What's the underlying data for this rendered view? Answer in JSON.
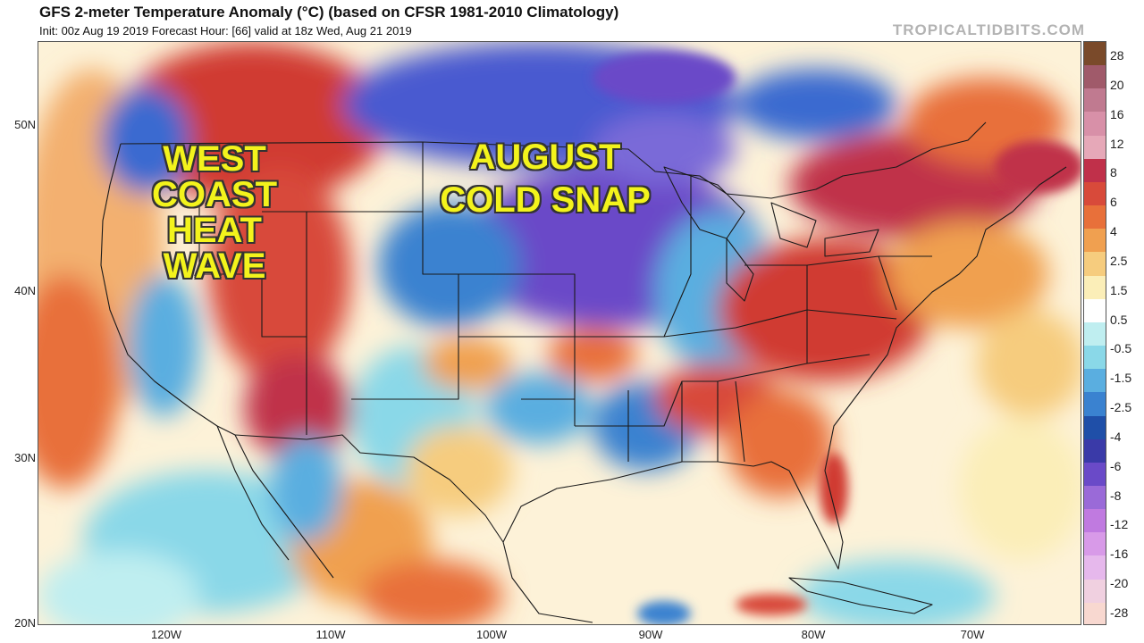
{
  "header": {
    "title": "GFS 2-meter Temperature Anomaly (°C) (based on CFSR 1981-2010 Climatology)",
    "subtitle": "Init: 00z Aug 19 2019   Forecast Hour: [66]   valid at 18z Wed, Aug 21 2019",
    "brand": "TROPICALTIDBITS.COM"
  },
  "map": {
    "lat_labels": [
      "50N",
      "40N",
      "30N",
      "20N"
    ],
    "lon_labels": [
      "120W",
      "110W",
      "100W",
      "90W",
      "80W",
      "70W"
    ],
    "annotations": {
      "west": [
        "WEST",
        "COAST",
        "HEAT",
        "WAVE"
      ],
      "august": [
        "AUGUST",
        "COLD SNAP"
      ]
    }
  },
  "colorbar": {
    "labels": [
      "28",
      "20",
      "16",
      "12",
      "8",
      "6",
      "4",
      "2.5",
      "1.5",
      "0.5",
      "-0.5",
      "-1.5",
      "-2.5",
      "-4",
      "-6",
      "-8",
      "-12",
      "-16",
      "-20",
      "-28"
    ],
    "colors": [
      "#7a4a2a",
      "#a05a6a",
      "#c07a90",
      "#d890a8",
      "#e6a8b8",
      "#c0304a",
      "#d84a3a",
      "#e8703a",
      "#f0a050",
      "#f6cc7e",
      "#fbeeb8",
      "#ffffff",
      "#bfeef0",
      "#8ad8e8",
      "#5aaee0",
      "#3a82d0",
      "#1f4fa8",
      "#3a3aa8",
      "#6a4ac8",
      "#9a6ad8",
      "#c07ae0",
      "#d89ae8",
      "#e6b8ec",
      "#f0d0e0",
      "#f8d8d0"
    ]
  },
  "colors": {
    "annotation_text": "#f3f31c",
    "hot": "#d03a30",
    "cold": "#4a5ad0",
    "ocean_neutral": "#fdf2d8"
  }
}
